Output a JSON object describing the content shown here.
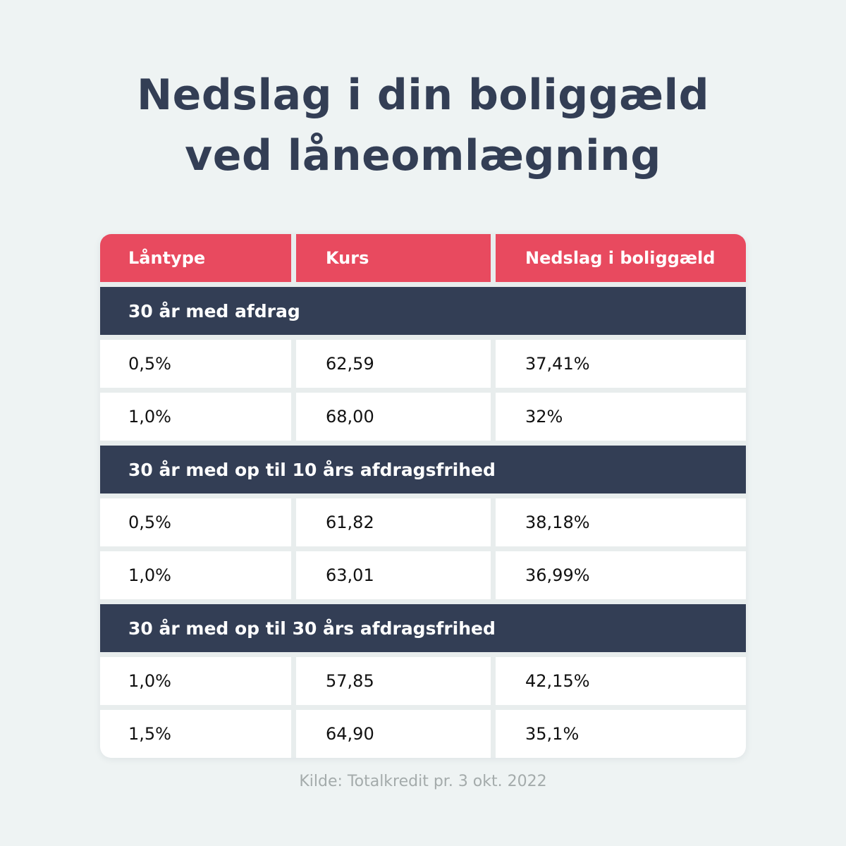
{
  "title": {
    "line1": "Nedslag i din boliggæld",
    "line2": "ved låneomlægning"
  },
  "colors": {
    "header": "#e84a5f",
    "group": "#333e55",
    "background": "#eef3f3"
  },
  "table": {
    "columns": [
      "Låntype",
      "Kurs",
      "Nedslag i boliggæld"
    ],
    "groups": [
      {
        "label": "30 år med afdrag",
        "rows": [
          [
            "0,5%",
            "62,59",
            "37,41%"
          ],
          [
            "1,0%",
            "68,00",
            "32%"
          ]
        ]
      },
      {
        "label": "30 år med op til 10 års afdragsfrihed",
        "rows": [
          [
            "0,5%",
            "61,82",
            "38,18%"
          ],
          [
            "1,0%",
            "63,01",
            "36,99%"
          ]
        ]
      },
      {
        "label": "30 år med op til 30 års afdragsfrihed",
        "rows": [
          [
            "1,0%",
            "57,85",
            "42,15%"
          ],
          [
            "1,5%",
            "64,90",
            "35,1%"
          ]
        ]
      }
    ]
  },
  "source": "Kilde: Totalkredit pr. 3 okt. 2022"
}
